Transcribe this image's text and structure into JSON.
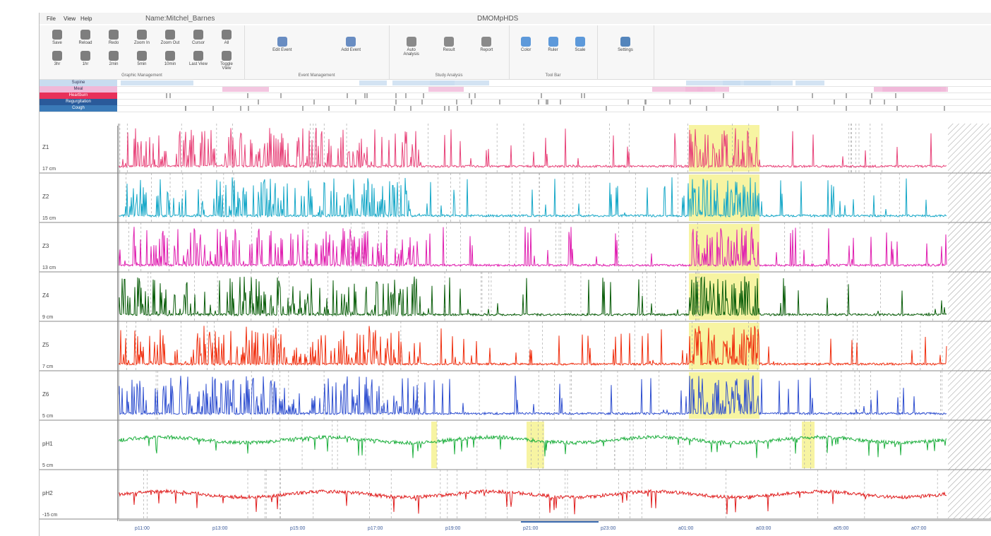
{
  "menu": [
    "File",
    "View",
    "Help"
  ],
  "patient": "Name:Mitchel_Barnes",
  "app_title": "DMOMpHDS",
  "toolbar": [
    {
      "group": "Graphic Management",
      "buttons": [
        "Save",
        "Reload",
        "Redo",
        "Zoom In",
        "Zoom Out",
        "Cursor",
        "All",
        "3hr",
        "1hr",
        "2min",
        "5min",
        "10min",
        "Last View",
        "Toggle View"
      ]
    },
    {
      "group": "Event Management",
      "buttons": [
        "Edit Event",
        "Add Event"
      ]
    },
    {
      "group": "Study Analysis",
      "buttons": [
        "Auto Analysis",
        "Result",
        "Report"
      ]
    },
    {
      "group": "Tool Bar",
      "buttons": [
        "Color",
        "Ruler",
        "Scale"
      ]
    },
    {
      "group": "",
      "buttons": [
        "Settings"
      ]
    }
  ],
  "events": [
    {
      "label": "Supine",
      "color": "#c8dcf0"
    },
    {
      "label": "Meal",
      "color": "#f0b8d8"
    },
    {
      "label": "Heartburn",
      "color": "#e8305a"
    },
    {
      "label": "Regurgitation",
      "color": "#2a5a9a"
    },
    {
      "label": "Cough",
      "color": "#3a7ab8"
    }
  ],
  "channels": [
    {
      "name": "Z1",
      "position": "17 cm",
      "color": "#e8447a"
    },
    {
      "name": "Z2",
      "position": "15 cm",
      "color": "#17a8c8"
    },
    {
      "name": "Z3",
      "position": "13 cm",
      "color": "#e020b0"
    },
    {
      "name": "Z4",
      "position": "9 cm",
      "color": "#0b5e0b"
    },
    {
      "name": "Z5",
      "position": "7 cm",
      "color": "#f03010"
    },
    {
      "name": "Z6",
      "position": "5 cm",
      "color": "#3050d0"
    },
    {
      "name": "pH1",
      "position": "5 cm",
      "color": "#20b040"
    },
    {
      "name": "pH2",
      "position": "-15 cm",
      "color": "#e02020"
    }
  ],
  "time_labels": [
    "p11:00",
    "p13:00",
    "p15:00",
    "p17:00",
    "p19:00",
    "p21:00",
    "p23:00",
    "a01:00",
    "a03:00",
    "a05:00",
    "a07:00"
  ]
}
